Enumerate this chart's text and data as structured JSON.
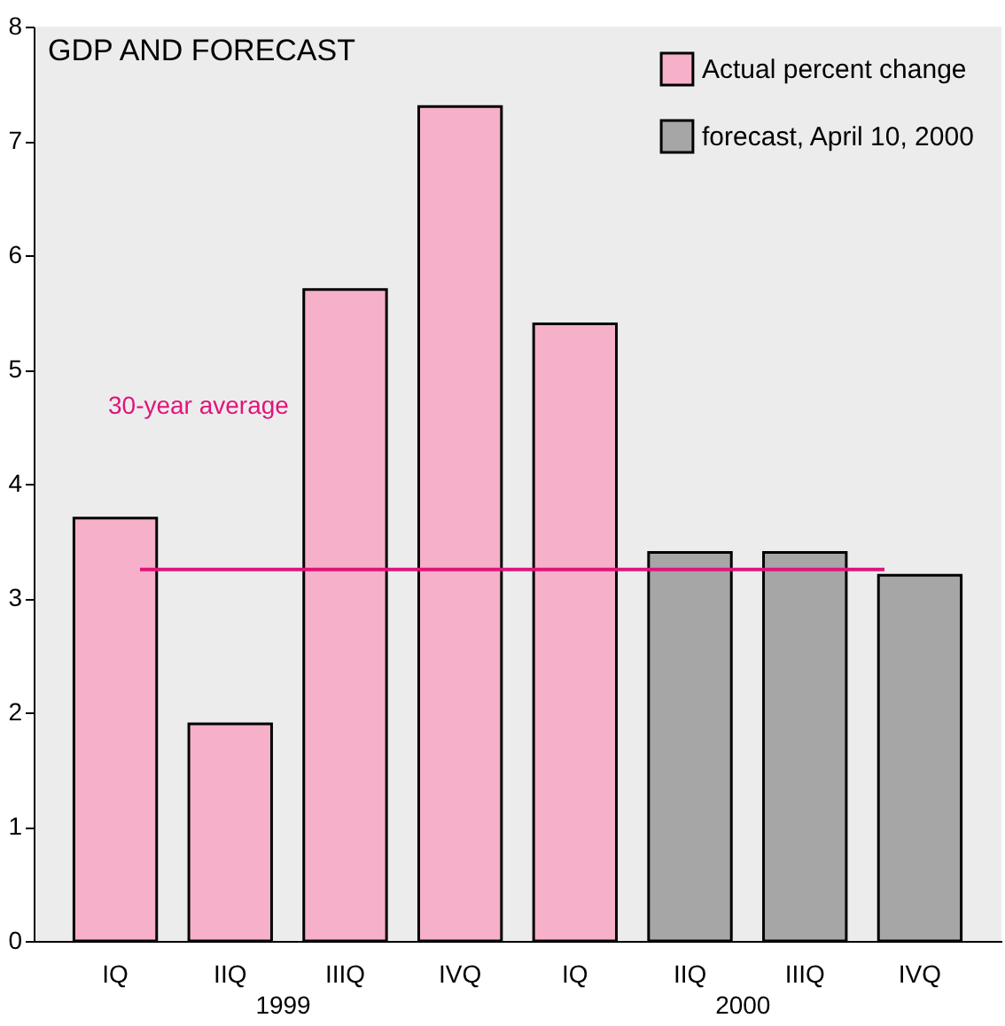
{
  "chart_data": {
    "type": "bar",
    "title": "GDP AND FORECAST",
    "categories": [
      "IQ",
      "IIQ",
      "IIIQ",
      "IVQ",
      "IQ",
      "IIQ",
      "IIIQ",
      "IVQ"
    ],
    "series": [
      {
        "name": "Actual percent change",
        "color": "#f7b0c9",
        "values": [
          3.7,
          1.9,
          5.7,
          7.3,
          5.4,
          null,
          null,
          null
        ]
      },
      {
        "name": "forecast, April 10, 2000",
        "color": "#a6a6a6",
        "values": [
          null,
          null,
          null,
          null,
          null,
          3.4,
          3.4,
          3.2
        ]
      }
    ],
    "ylim": [
      0,
      8
    ],
    "yticks": [
      0,
      1,
      2,
      3,
      4,
      5,
      6,
      7,
      8
    ],
    "ref_lines": [
      {
        "axis": "y",
        "value": 3.25,
        "label": "30-year average",
        "color": "#e0147a"
      }
    ],
    "annotations": [
      "1999",
      "2000"
    ],
    "legend": "top right"
  }
}
